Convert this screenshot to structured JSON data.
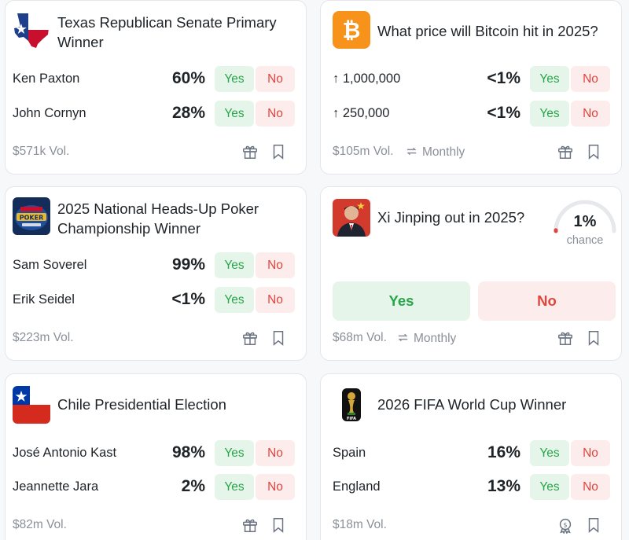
{
  "colors": {
    "yes_bg": "#e6f5ea",
    "yes_text": "#27a548",
    "no_bg": "#fdecec",
    "no_text": "#e0453c",
    "muted": "#8a9099"
  },
  "icons": {
    "footer_gift": "gift-icon",
    "footer_bookmark": "bookmark-icon",
    "monthly": "repeat-icon",
    "arrow": "arrow-up-icon"
  },
  "cards": [
    {
      "title": "Texas Republican Senate Primary Winner",
      "thumb": "texas-flag-map",
      "outcomes": [
        {
          "name": "Ken Paxton",
          "pct": "60%",
          "yes": "Yes",
          "no": "No"
        },
        {
          "name": "John Cornyn",
          "pct": "28%",
          "yes": "Yes",
          "no": "No"
        }
      ],
      "volume": "$571k Vol."
    },
    {
      "title": "What price will Bitcoin hit in 2025?",
      "thumb": "bitcoin-logo",
      "outcomes": [
        {
          "name": "1,000,000",
          "pct": "<1%",
          "yes": "Yes",
          "no": "No"
        },
        {
          "name": "250,000",
          "pct": "<1%",
          "yes": "Yes",
          "no": "No"
        }
      ],
      "volume": "$105m Vol.",
      "recurrence": "Monthly"
    },
    {
      "title": "2025 National Heads-Up Poker Championship Winner",
      "thumb": "poker-championship-logo",
      "outcomes": [
        {
          "name": "Sam Soverel",
          "pct": "99%",
          "yes": "Yes",
          "no": "No"
        },
        {
          "name": "Erik Seidel",
          "pct": "<1%",
          "yes": "Yes",
          "no": "No"
        }
      ],
      "volume": "$223m Vol."
    },
    {
      "title": "Xi Jinping out in 2025?",
      "thumb": "xi-jinping-photo",
      "chance_value": "1%",
      "chance_fraction": 0.01,
      "chance_label": "chance",
      "yes": "Yes",
      "no": "No",
      "volume": "$68m Vol.",
      "recurrence": "Monthly"
    },
    {
      "title": "Chile Presidential Election",
      "thumb": "chile-flag",
      "outcomes": [
        {
          "name": "José Antonio Kast",
          "pct": "98%",
          "yes": "Yes",
          "no": "No"
        },
        {
          "name": "Jeannette Jara",
          "pct": "2%",
          "yes": "Yes",
          "no": "No"
        }
      ],
      "volume": "$82m Vol."
    },
    {
      "title": "2026 FIFA World Cup Winner",
      "thumb": "fifa-world-cup-logo",
      "outcomes": [
        {
          "name": "Spain",
          "pct": "16%",
          "yes": "Yes",
          "no": "No"
        },
        {
          "name": "England",
          "pct": "13%",
          "yes": "Yes",
          "no": "No"
        }
      ],
      "volume": "$18m Vol."
    }
  ]
}
